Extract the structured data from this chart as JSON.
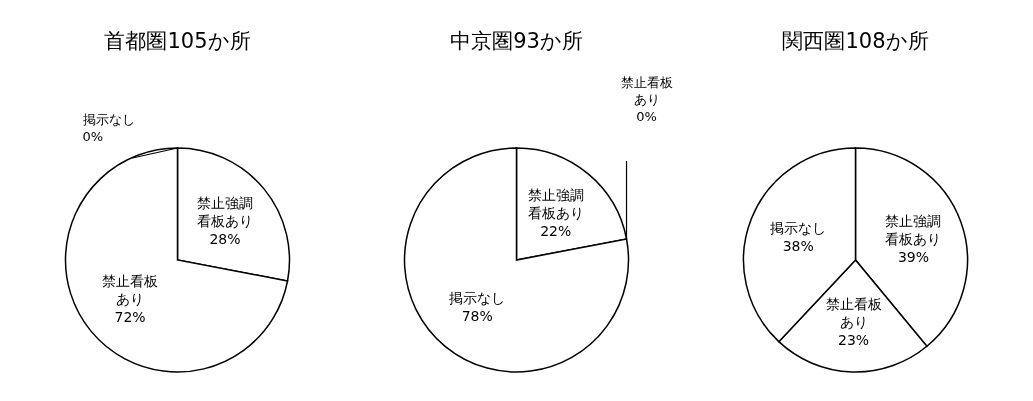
{
  "chart_data": [
    {
      "type": "pie",
      "title": "首都圏105か所",
      "categories": [
        "禁止強調看板あり",
        "禁止看板あり",
        "掲示なし"
      ],
      "values": [
        28,
        72,
        0
      ],
      "value_labels": [
        "28%",
        "72%",
        "0%"
      ],
      "colors": [
        "#ffffff",
        "#ffffff",
        "#ffffff"
      ]
    },
    {
      "type": "pie",
      "title": "中京圏93か所",
      "categories": [
        "禁止強調看板あり",
        "禁止看板あり",
        "掲示なし"
      ],
      "values": [
        22,
        0,
        78
      ],
      "value_labels": [
        "22%",
        "0%",
        "78%"
      ],
      "colors": [
        "#ffffff",
        "#ffffff",
        "#ffffff"
      ]
    },
    {
      "type": "pie",
      "title": "関西圏108か所",
      "categories": [
        "禁止強調看板あり",
        "禁止看板あり",
        "掲示なし"
      ],
      "values": [
        39,
        23,
        38
      ],
      "value_labels": [
        "39%",
        "23%",
        "38%"
      ],
      "colors": [
        "#ffffff",
        "#ffffff",
        "#ffffff"
      ]
    }
  ]
}
